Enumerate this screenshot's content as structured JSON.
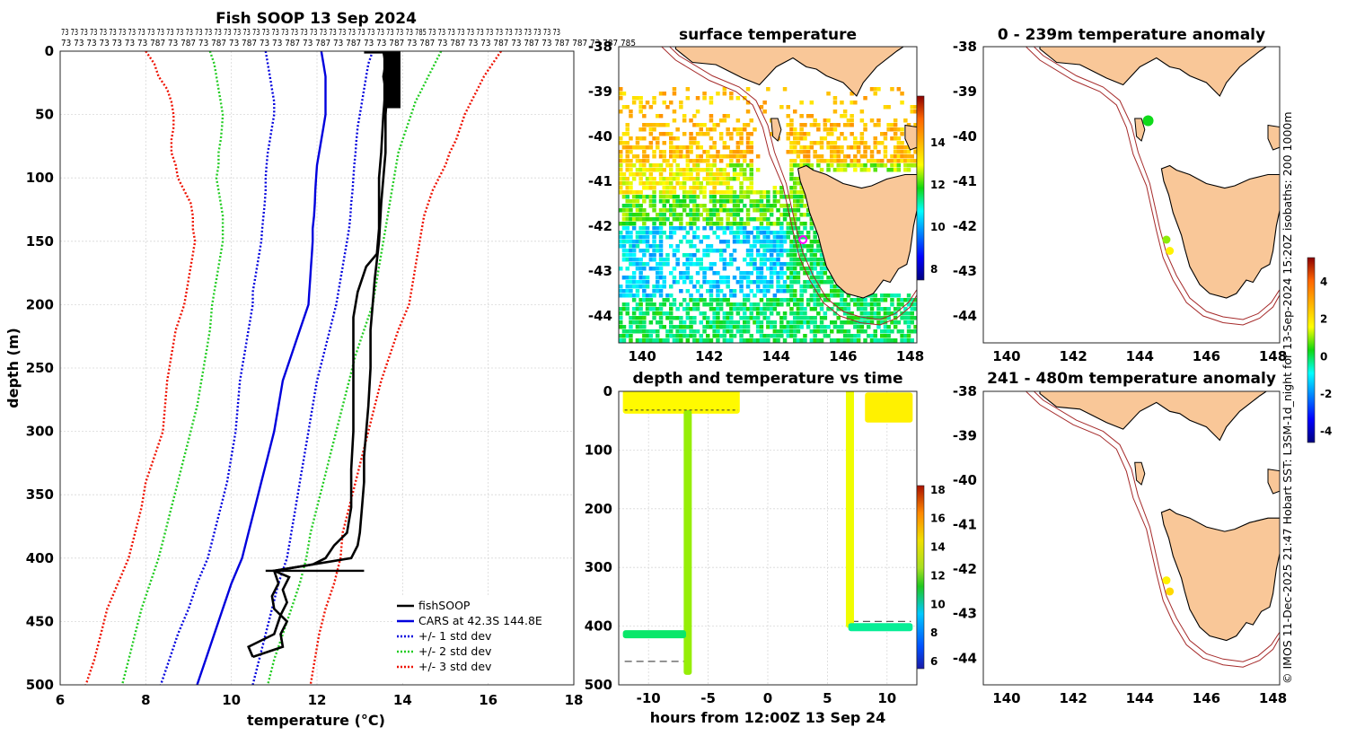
{
  "colors": {
    "black": "#000000",
    "blue": "#0000dd",
    "green": "#22cc22",
    "red": "#ee1100",
    "land": "#f9c798",
    "coast": "#000000",
    "isobath": "#a52a2a",
    "marker": "#ff00ff"
  },
  "profile": {
    "title": "Fish SOOP 13 Sep 2024",
    "top_labels_row1": "73 73 73 73 73 73 73 73 73 73 73 73 73 73 73 73 73 73 73 73 73 73 73 73 73 73 73 73 73 73 73 73 73 73 73 73 73 785 73 73 73 73 73 73 73 73 73 73 73 73 73 73",
    "top_labels_row2": "73 73 73 73 73 73 73 787 73 787 73 787 73 787 73 73 787 73 787 73 787 73 73 787 73 787 73 787 73 73 787 73 787 73 787 787 73 787 785",
    "xlabel": "temperature (°C)",
    "ylabel": "depth (m)",
    "legend": [
      "fishSOOP",
      "CARS at 42.3S 144.8E",
      "+/- 1 std dev",
      "+/- 2 std dev",
      "+/- 3 std dev"
    ]
  },
  "sst": {
    "title": "surface temperature",
    "colorbar_ticks": [
      "14",
      "12",
      "10",
      "8"
    ]
  },
  "timeseries": {
    "title": "depth and temperature vs time",
    "xlabel": "hours from 12:00Z 13 Sep 24",
    "colorbar_ticks": [
      "18",
      "16",
      "14",
      "12",
      "10",
      "8",
      "6"
    ]
  },
  "anom1": {
    "title": "0 - 239m temperature anomaly"
  },
  "anom2": {
    "title": "241 - 480m temperature anomaly",
    "colorbar_ticks": [
      "4",
      "2",
      "0",
      "-2",
      "-4"
    ]
  },
  "credit": "© IMOS 11-Dec-2025 21:47 Hobart SST: L3SM-1d_night for 13-Sep-2024 15:20Z isobaths: 200  1000m",
  "chart_data": [
    {
      "type": "line",
      "title": "Fish SOOP 13 Sep 2024",
      "xlabel": "temperature (°C)",
      "ylabel": "depth (m)",
      "xlim": [
        6,
        18
      ],
      "ylim": [
        500,
        0
      ],
      "xticks": [
        6,
        8,
        10,
        12,
        14,
        16,
        18
      ],
      "yticks": [
        0,
        50,
        100,
        150,
        200,
        250,
        300,
        350,
        400,
        450,
        500
      ],
      "depths": [
        0,
        10,
        20,
        30,
        40,
        50,
        60,
        70,
        80,
        90,
        100,
        110,
        120,
        130,
        140,
        150,
        160,
        170,
        180,
        190,
        200,
        220,
        240,
        260,
        280,
        300,
        320,
        340,
        360,
        380,
        400,
        420,
        440,
        460,
        480,
        500
      ],
      "series": [
        {
          "name": "CARS at 42.3S 144.8E",
          "style": "solid",
          "color": "#0000dd",
          "values": [
            12.1,
            12.15,
            12.2,
            12.2,
            12.2,
            12.2,
            12.15,
            12.1,
            12.05,
            12.0,
            11.98,
            11.96,
            11.95,
            11.93,
            11.9,
            11.9,
            11.88,
            11.86,
            11.84,
            11.82,
            11.8,
            11.6,
            11.4,
            11.2,
            11.1,
            11.0,
            10.85,
            10.7,
            10.55,
            10.4,
            10.25,
            10.0,
            9.8,
            9.6,
            9.4,
            9.2
          ]
        },
        {
          "name": "+/- 1 std dev",
          "style": "dotted",
          "color": "#0000dd",
          "values": [
            10.8,
            10.85,
            10.9,
            10.95,
            11.0,
            11.0,
            10.95,
            10.9,
            10.85,
            10.82,
            10.8,
            10.8,
            10.78,
            10.75,
            10.72,
            10.7,
            10.65,
            10.6,
            10.55,
            10.5,
            10.5,
            10.4,
            10.3,
            10.2,
            10.15,
            10.1,
            10.0,
            9.9,
            9.75,
            9.6,
            9.45,
            9.2,
            9.0,
            8.75,
            8.55,
            8.35
          ]
        },
        {
          "name": "+/- 1 std dev",
          "style": "dotted",
          "color": "#0000dd",
          "values": [
            13.3,
            13.2,
            13.15,
            13.1,
            13.05,
            13.0,
            12.95,
            12.92,
            12.9,
            12.87,
            12.85,
            12.83,
            12.8,
            12.78,
            12.75,
            12.7,
            12.65,
            12.6,
            12.55,
            12.5,
            12.45,
            12.3,
            12.15,
            12.0,
            11.9,
            11.8,
            11.7,
            11.6,
            11.5,
            11.4,
            11.3,
            11.1,
            10.95,
            10.8,
            10.65,
            10.5
          ]
        },
        {
          "name": "+/- 2 std dev",
          "style": "dotted",
          "color": "#22cc22",
          "values": [
            9.5,
            9.6,
            9.65,
            9.7,
            9.75,
            9.8,
            9.78,
            9.75,
            9.7,
            9.7,
            9.65,
            9.7,
            9.75,
            9.8,
            9.8,
            9.8,
            9.75,
            9.7,
            9.65,
            9.6,
            9.55,
            9.5,
            9.4,
            9.3,
            9.2,
            9.05,
            8.9,
            8.75,
            8.6,
            8.45,
            8.3,
            8.1,
            7.9,
            7.75,
            7.6,
            7.45
          ]
        },
        {
          "name": "+/- 2 std dev",
          "style": "dotted",
          "color": "#22cc22",
          "values": [
            14.9,
            14.75,
            14.6,
            14.45,
            14.3,
            14.2,
            14.1,
            14.0,
            13.9,
            13.85,
            13.8,
            13.75,
            13.7,
            13.65,
            13.6,
            13.55,
            13.5,
            13.45,
            13.4,
            13.35,
            13.3,
            13.1,
            12.9,
            12.75,
            12.6,
            12.45,
            12.3,
            12.15,
            12.0,
            11.85,
            11.75,
            11.6,
            11.4,
            11.2,
            11.0,
            10.85
          ]
        },
        {
          "name": "+/- 3 std dev",
          "style": "dotted",
          "color": "#ee1100",
          "values": [
            8.0,
            8.2,
            8.3,
            8.5,
            8.6,
            8.65,
            8.65,
            8.6,
            8.6,
            8.7,
            8.75,
            8.9,
            9.05,
            9.1,
            9.1,
            9.15,
            9.1,
            9.05,
            9.0,
            8.95,
            8.9,
            8.7,
            8.6,
            8.5,
            8.45,
            8.4,
            8.2,
            8.0,
            7.9,
            7.75,
            7.6,
            7.35,
            7.1,
            6.95,
            6.8,
            6.6
          ]
        },
        {
          "name": "+/- 3 std dev",
          "style": "dotted",
          "color": "#ee1100",
          "values": [
            16.3,
            16.1,
            15.9,
            15.75,
            15.6,
            15.45,
            15.35,
            15.25,
            15.1,
            15.0,
            14.85,
            14.7,
            14.6,
            14.5,
            14.45,
            14.4,
            14.35,
            14.3,
            14.25,
            14.2,
            14.15,
            13.9,
            13.7,
            13.5,
            13.35,
            13.2,
            13.05,
            12.9,
            12.75,
            12.6,
            12.55,
            12.4,
            12.2,
            12.05,
            11.95,
            11.85
          ]
        }
      ],
      "fishsoop": {
        "name": "fishSOOP",
        "down_depths": [
          0,
          10,
          20,
          30,
          50,
          80,
          100,
          140,
          160,
          170,
          190,
          210,
          230,
          260,
          300,
          330,
          360,
          380,
          390,
          400,
          405,
          410,
          415,
          425,
          435,
          445,
          460,
          470,
          478
        ],
        "down_values": [
          13.55,
          13.6,
          13.55,
          13.6,
          13.55,
          13.5,
          13.45,
          13.45,
          13.4,
          13.15,
          12.95,
          12.85,
          12.85,
          12.85,
          12.85,
          12.8,
          12.8,
          12.7,
          12.4,
          12.2,
          11.9,
          11.0,
          11.35,
          11.2,
          11.3,
          11.15,
          11.0,
          10.4,
          10.5
        ],
        "up_depths": [
          478,
          470,
          460,
          450,
          440,
          430,
          420,
          410,
          400,
          390,
          380,
          360,
          340,
          320,
          300,
          280,
          250,
          220,
          200,
          180,
          150,
          120,
          100,
          80,
          50,
          30,
          10,
          0
        ],
        "up_values": [
          10.5,
          11.2,
          11.15,
          11.3,
          11.0,
          10.95,
          11.1,
          11.0,
          12.8,
          12.95,
          13.0,
          13.05,
          13.1,
          13.1,
          13.15,
          13.2,
          13.25,
          13.25,
          13.3,
          13.35,
          13.45,
          13.5,
          13.55,
          13.6,
          13.6,
          13.65,
          13.65,
          13.6
        ]
      }
    },
    {
      "type": "heatmap",
      "title": "surface temperature",
      "xlim": [
        139.3,
        148.2
      ],
      "ylim": [
        -44.6,
        -38
      ],
      "xticks": [
        140,
        142,
        144,
        146,
        148
      ],
      "yticks": [
        -38,
        -39,
        -40,
        -41,
        -42,
        -43,
        -44
      ],
      "colorbar": {
        "range": [
          7.5,
          16.2
        ],
        "ticks": [
          8,
          10,
          12,
          14
        ]
      }
    },
    {
      "type": "scatter",
      "title": "depth and temperature vs time",
      "xlabel": "hours from 12:00Z 13 Sep 24",
      "xlim": [
        -12.5,
        12.5
      ],
      "ylim": [
        500,
        0
      ],
      "xticks": [
        -10,
        -5,
        0,
        5,
        10
      ],
      "yticks": [
        0,
        100,
        200,
        300,
        400,
        500
      ],
      "colorbar": {
        "range": [
          5.5,
          18.3
        ],
        "ticks": [
          6,
          8,
          10,
          12,
          14,
          16,
          18
        ]
      },
      "segments": [
        {
          "x": [
            -12,
            -2.5
          ],
          "depth": [
            0,
            35
          ],
          "temp": 13.6
        },
        {
          "x": [
            -6.9,
            -6.9
          ],
          "depth": [
            35,
            480
          ],
          "temp": 12.8
        },
        {
          "x": [
            -12,
            -7
          ],
          "depth": [
            410,
            412
          ],
          "temp": 11.3
        },
        {
          "x": [
            6.7,
            6.8
          ],
          "depth": [
            0,
            400
          ],
          "temp": 13.4
        },
        {
          "x": [
            6.9,
            12
          ],
          "depth": [
            398,
            400
          ],
          "temp": 11.0
        },
        {
          "x": [
            8.3,
            12
          ],
          "depth": [
            5,
            50
          ],
          "temp": 13.8
        }
      ],
      "dashed_depths": [
        {
          "x": [
            -12,
            -7
          ],
          "depth": 460
        },
        {
          "x": [
            7,
            12
          ],
          "depth": 392
        }
      ]
    },
    {
      "type": "scatter",
      "title": "0 - 239m temperature anomaly",
      "xlim": [
        139.3,
        148.2
      ],
      "ylim": [
        -44.6,
        -38
      ],
      "xticks": [
        140,
        142,
        144,
        146,
        148
      ],
      "yticks": [
        -38,
        -39,
        -40,
        -41,
        -42,
        -43,
        -44
      ],
      "points": [
        {
          "lon": 144.25,
          "lat": -39.65,
          "anomaly": 0.3
        },
        {
          "lon": 144.8,
          "lat": -42.3,
          "anomaly": 1.0
        },
        {
          "lon": 144.9,
          "lat": -42.55,
          "anomaly": 1.8
        }
      ]
    },
    {
      "type": "scatter",
      "title": "241 - 480m temperature anomaly",
      "xlim": [
        139.3,
        148.2
      ],
      "ylim": [
        -44.6,
        -38
      ],
      "xticks": [
        140,
        142,
        144,
        146,
        148
      ],
      "yticks": [
        -38,
        -39,
        -40,
        -41,
        -42,
        -43,
        -44
      ],
      "colorbar": {
        "range": [
          -4.6,
          5.3
        ],
        "ticks": [
          -4,
          -2,
          0,
          2,
          4
        ]
      },
      "points": [
        {
          "lon": 144.8,
          "lat": -42.25,
          "anomaly": 1.8
        },
        {
          "lon": 144.9,
          "lat": -42.5,
          "anomaly": 2.2
        }
      ]
    }
  ]
}
